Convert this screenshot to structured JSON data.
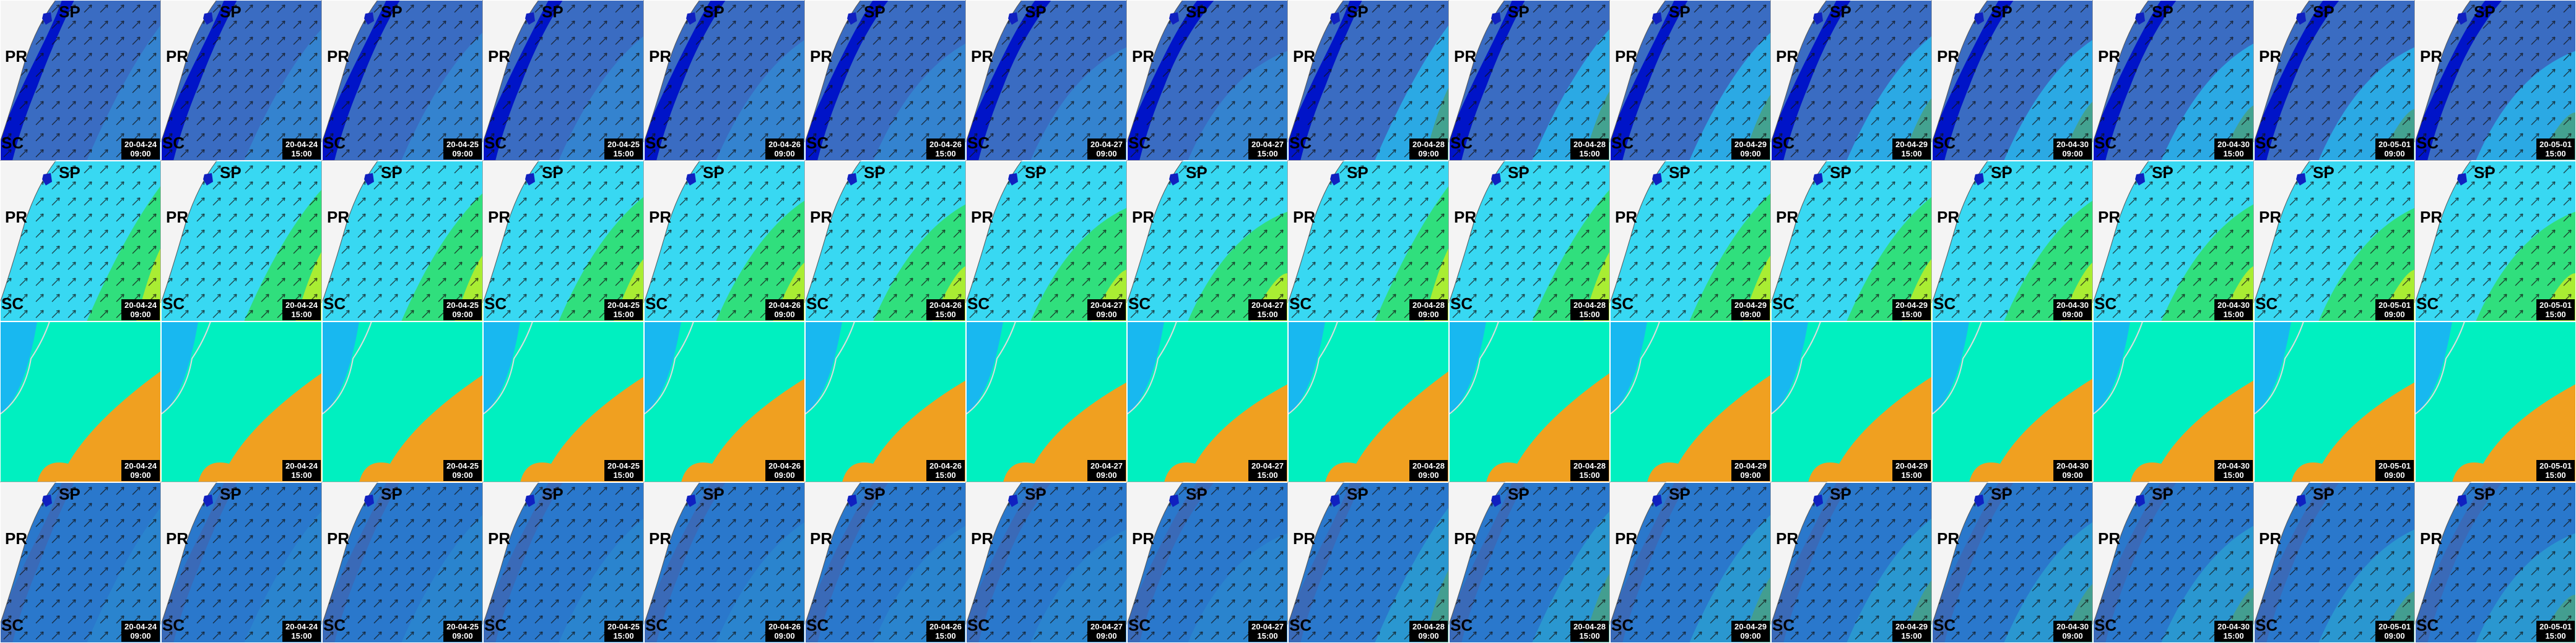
{
  "labels": [
    "SP",
    "PR",
    "SC"
  ],
  "tiles": [
    {
      "date": "20-04-24",
      "time": "09:00"
    },
    {
      "date": "20-04-24",
      "time": "15:00"
    },
    {
      "date": "20-04-25",
      "time": "09:00"
    },
    {
      "date": "20-04-25",
      "time": "15:00"
    },
    {
      "date": "20-04-26",
      "time": "09:00"
    },
    {
      "date": "20-04-26",
      "time": "15:00"
    },
    {
      "date": "20-04-27",
      "time": "09:00"
    },
    {
      "date": "20-04-27",
      "time": "15:00"
    },
    {
      "date": "20-04-28",
      "time": "09:00"
    },
    {
      "date": "20-04-28",
      "time": "15:00"
    },
    {
      "date": "20-04-29",
      "time": "09:00"
    },
    {
      "date": "20-04-29",
      "time": "15:00"
    },
    {
      "date": "20-04-30",
      "time": "09:00"
    },
    {
      "date": "20-04-30",
      "time": "15:00"
    },
    {
      "date": "20-05-01",
      "time": "09:00"
    },
    {
      "date": "20-05-01",
      "time": "15:00"
    }
  ]
}
